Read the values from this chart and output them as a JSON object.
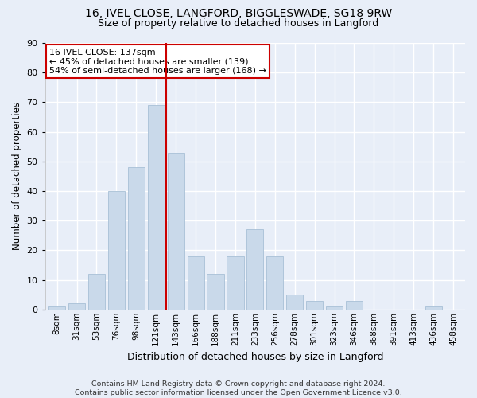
{
  "title1": "16, IVEL CLOSE, LANGFORD, BIGGLESWADE, SG18 9RW",
  "title2": "Size of property relative to detached houses in Langford",
  "xlabel": "Distribution of detached houses by size in Langford",
  "ylabel": "Number of detached properties",
  "categories": [
    "8sqm",
    "31sqm",
    "53sqm",
    "76sqm",
    "98sqm",
    "121sqm",
    "143sqm",
    "166sqm",
    "188sqm",
    "211sqm",
    "233sqm",
    "256sqm",
    "278sqm",
    "301sqm",
    "323sqm",
    "346sqm",
    "368sqm",
    "391sqm",
    "413sqm",
    "436sqm",
    "458sqm"
  ],
  "values": [
    1,
    2,
    12,
    40,
    48,
    69,
    53,
    18,
    12,
    18,
    27,
    18,
    5,
    3,
    1,
    3,
    0,
    0,
    0,
    1,
    0
  ],
  "bar_color": "#c9d9ea",
  "bar_edge_color": "#a8c0d6",
  "vline_x": 5.5,
  "vline_color": "#cc0000",
  "annotation_title": "16 IVEL CLOSE: 137sqm",
  "annotation_line1": "← 45% of detached houses are smaller (139)",
  "annotation_line2": "54% of semi-detached houses are larger (168) →",
  "annotation_box_color": "white",
  "annotation_box_edge": "#cc0000",
  "ylim": [
    0,
    90
  ],
  "yticks": [
    0,
    10,
    20,
    30,
    40,
    50,
    60,
    70,
    80,
    90
  ],
  "footer1": "Contains HM Land Registry data © Crown copyright and database right 2024.",
  "footer2": "Contains public sector information licensed under the Open Government Licence v3.0.",
  "background_color": "#e8eef8",
  "grid_color": "#ffffff"
}
